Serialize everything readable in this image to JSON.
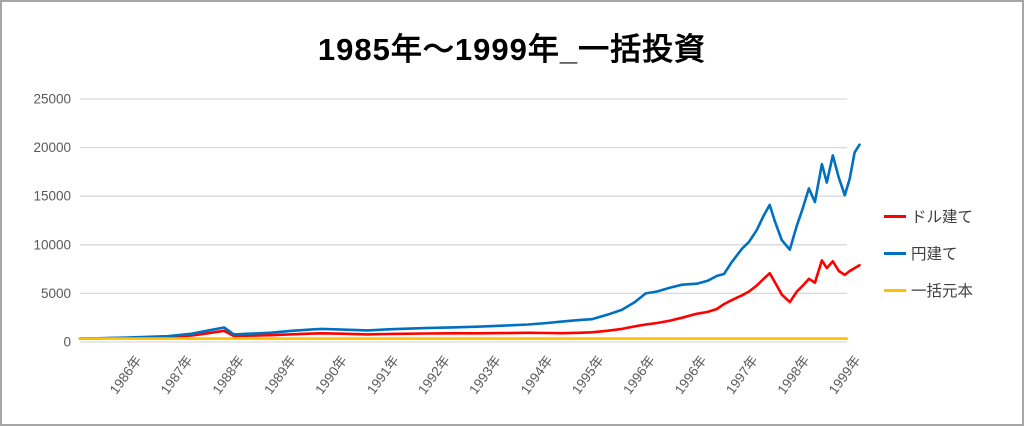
{
  "window": {
    "background": "#ffffff",
    "border_color": "#a6a6a6"
  },
  "chart_data": {
    "type": "line",
    "title": "1985年〜1999年_一括投資",
    "xlabel": "",
    "ylabel": "",
    "legend_position": "right",
    "grid": "horizontal",
    "x_range": [
      1985.3,
      1999.64
    ],
    "ylim": [
      0,
      25000
    ],
    "y_ticks": [
      0,
      5000,
      10000,
      15000,
      20000,
      25000
    ],
    "x_ticks": [
      {
        "pos": 1985.98,
        "label": "1986年"
      },
      {
        "pos": 1986.92,
        "label": "1987年"
      },
      {
        "pos": 1987.87,
        "label": "1988年"
      },
      {
        "pos": 1988.82,
        "label": "1989年"
      },
      {
        "pos": 1989.76,
        "label": "1990年"
      },
      {
        "pos": 1990.71,
        "label": "1991年"
      },
      {
        "pos": 1991.65,
        "label": "1992年"
      },
      {
        "pos": 1992.59,
        "label": "1993年"
      },
      {
        "pos": 1993.54,
        "label": "1994年"
      },
      {
        "pos": 1994.48,
        "label": "1995年"
      },
      {
        "pos": 1995.42,
        "label": "1996年"
      },
      {
        "pos": 1996.37,
        "label": "1996年"
      },
      {
        "pos": 1997.31,
        "label": "1997年"
      },
      {
        "pos": 1998.26,
        "label": "1998年"
      },
      {
        "pos": 1999.2,
        "label": "1999年"
      }
    ],
    "colors": {
      "grid": "#d9d9d9",
      "axis_text": "#595959",
      "legend_text": "#404040"
    },
    "series": [
      {
        "name": "ドル建て",
        "color": "#FF0000",
        "width": 2.6,
        "points": [
          [
            1985.3,
            350
          ],
          [
            1985.61,
            370
          ],
          [
            1985.98,
            400
          ],
          [
            1986.44,
            450
          ],
          [
            1986.92,
            520
          ],
          [
            1987.36,
            680
          ],
          [
            1987.63,
            880
          ],
          [
            1987.95,
            1150
          ],
          [
            1988.13,
            620
          ],
          [
            1988.46,
            660
          ],
          [
            1988.81,
            700
          ],
          [
            1989.2,
            790
          ],
          [
            1989.56,
            860
          ],
          [
            1989.75,
            890
          ],
          [
            1990.12,
            850
          ],
          [
            1990.59,
            780
          ],
          [
            1991.03,
            830
          ],
          [
            1991.64,
            870
          ],
          [
            1992.14,
            890
          ],
          [
            1992.6,
            900
          ],
          [
            1993.06,
            920
          ],
          [
            1993.54,
            950
          ],
          [
            1993.89,
            930
          ],
          [
            1994.16,
            905
          ],
          [
            1994.47,
            950
          ],
          [
            1994.71,
            1000
          ],
          [
            1994.99,
            1150
          ],
          [
            1995.26,
            1350
          ],
          [
            1995.5,
            1600
          ],
          [
            1995.7,
            1800
          ],
          [
            1995.91,
            1950
          ],
          [
            1996.15,
            2200
          ],
          [
            1996.37,
            2500
          ],
          [
            1996.64,
            2900
          ],
          [
            1996.84,
            3100
          ],
          [
            1997.01,
            3400
          ],
          [
            1997.14,
            3900
          ],
          [
            1997.28,
            4300
          ],
          [
            1997.47,
            4800
          ],
          [
            1997.6,
            5200
          ],
          [
            1997.74,
            5800
          ],
          [
            1997.87,
            6500
          ],
          [
            1997.98,
            7080
          ],
          [
            1998.07,
            6200
          ],
          [
            1998.2,
            4900
          ],
          [
            1998.35,
            4100
          ],
          [
            1998.48,
            5200
          ],
          [
            1998.59,
            5800
          ],
          [
            1998.7,
            6500
          ],
          [
            1998.81,
            6100
          ],
          [
            1998.94,
            8400
          ],
          [
            1999.03,
            7600
          ],
          [
            1999.14,
            8300
          ],
          [
            1999.25,
            7300
          ],
          [
            1999.36,
            6900
          ],
          [
            1999.45,
            7300
          ],
          [
            1999.54,
            7600
          ],
          [
            1999.63,
            7900
          ]
        ]
      },
      {
        "name": "円建て",
        "color": "#0070C0",
        "width": 2.6,
        "points": [
          [
            1985.3,
            350
          ],
          [
            1985.61,
            380
          ],
          [
            1985.98,
            430
          ],
          [
            1986.44,
            500
          ],
          [
            1986.92,
            600
          ],
          [
            1987.36,
            850
          ],
          [
            1987.63,
            1150
          ],
          [
            1987.95,
            1490
          ],
          [
            1988.13,
            780
          ],
          [
            1988.46,
            860
          ],
          [
            1988.81,
            960
          ],
          [
            1989.2,
            1150
          ],
          [
            1989.56,
            1300
          ],
          [
            1989.75,
            1350
          ],
          [
            1990.12,
            1280
          ],
          [
            1990.59,
            1190
          ],
          [
            1991.03,
            1320
          ],
          [
            1991.64,
            1430
          ],
          [
            1992.14,
            1500
          ],
          [
            1992.6,
            1570
          ],
          [
            1993.06,
            1680
          ],
          [
            1993.54,
            1800
          ],
          [
            1993.89,
            1950
          ],
          [
            1994.16,
            2100
          ],
          [
            1994.47,
            2250
          ],
          [
            1994.71,
            2350
          ],
          [
            1994.99,
            2800
          ],
          [
            1995.26,
            3300
          ],
          [
            1995.5,
            4100
          ],
          [
            1995.7,
            5000
          ],
          [
            1995.91,
            5200
          ],
          [
            1996.15,
            5600
          ],
          [
            1996.37,
            5900
          ],
          [
            1996.64,
            6000
          ],
          [
            1996.84,
            6300
          ],
          [
            1997.01,
            6800
          ],
          [
            1997.14,
            7000
          ],
          [
            1997.28,
            8200
          ],
          [
            1997.47,
            9600
          ],
          [
            1997.6,
            10300
          ],
          [
            1997.74,
            11500
          ],
          [
            1997.87,
            13000
          ],
          [
            1997.98,
            14100
          ],
          [
            1998.07,
            12500
          ],
          [
            1998.2,
            10500
          ],
          [
            1998.35,
            9500
          ],
          [
            1998.48,
            12000
          ],
          [
            1998.59,
            13800
          ],
          [
            1998.7,
            15800
          ],
          [
            1998.81,
            14400
          ],
          [
            1998.94,
            18300
          ],
          [
            1999.03,
            16400
          ],
          [
            1999.14,
            19200
          ],
          [
            1999.25,
            16900
          ],
          [
            1999.36,
            15100
          ],
          [
            1999.45,
            16800
          ],
          [
            1999.54,
            19500
          ],
          [
            1999.63,
            20300
          ]
        ]
      },
      {
        "name": "一括元本",
        "color": "#FFC000",
        "width": 2.6,
        "points": [
          [
            1985.3,
            350
          ],
          [
            1999.4,
            350
          ]
        ]
      }
    ]
  }
}
